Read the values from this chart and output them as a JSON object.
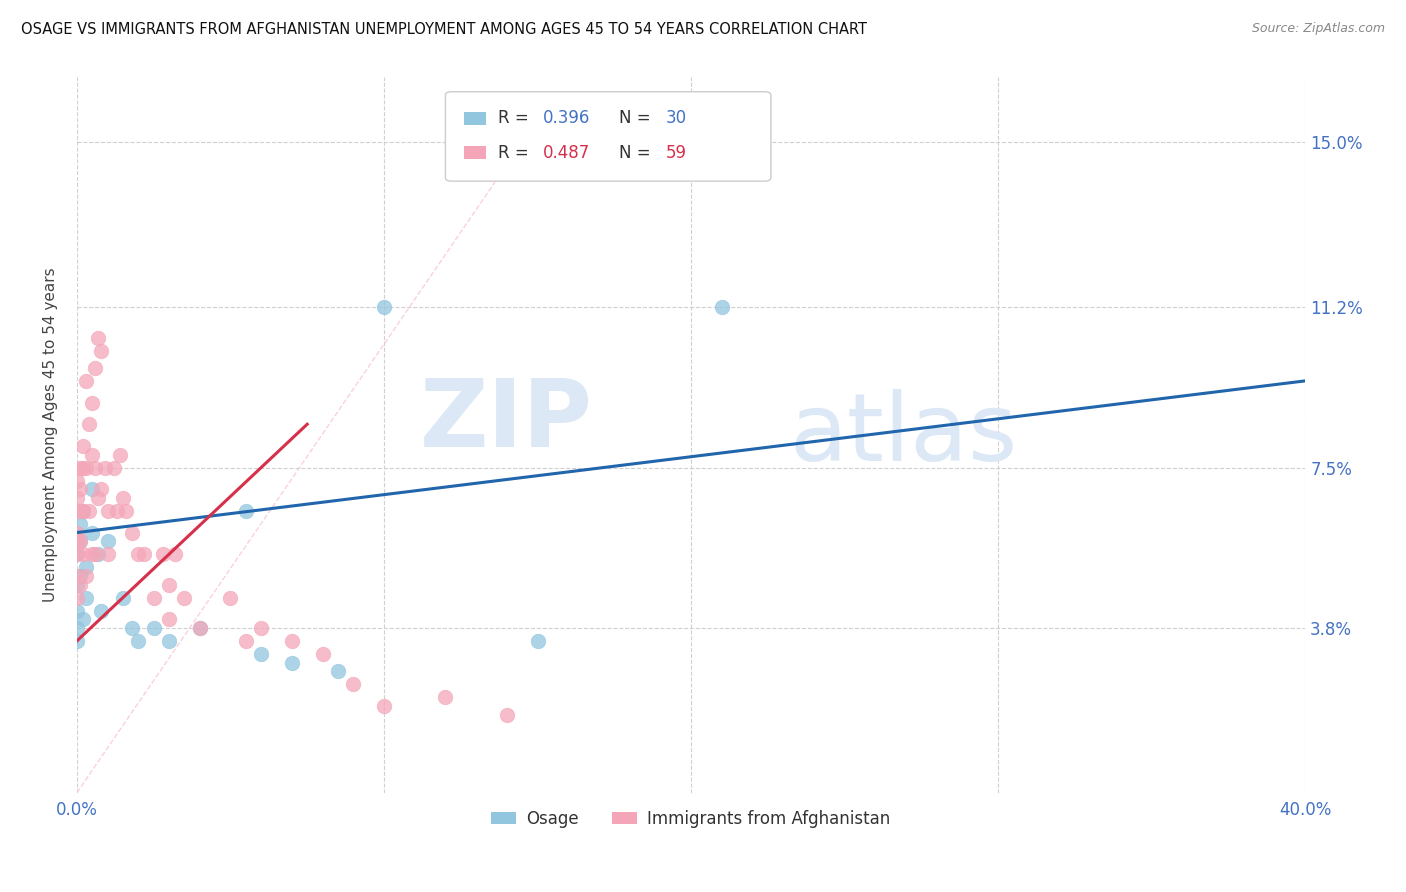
{
  "title": "OSAGE VS IMMIGRANTS FROM AFGHANISTAN UNEMPLOYMENT AMONG AGES 45 TO 54 YEARS CORRELATION CHART",
  "source": "Source: ZipAtlas.com",
  "ylabel": "Unemployment Among Ages 45 to 54 years",
  "ytick_labels": [
    "3.8%",
    "7.5%",
    "11.2%",
    "15.0%"
  ],
  "ytick_values": [
    3.8,
    7.5,
    11.2,
    15.0
  ],
  "xlim": [
    0.0,
    40.0
  ],
  "ylim": [
    0.0,
    16.5
  ],
  "legend1_r": "R = 0.396",
  "legend1_n": "N = 30",
  "legend2_r": "R = 0.487",
  "legend2_n": "N = 59",
  "color_blue": "#92c5de",
  "color_pink": "#f4a6b8",
  "color_blue_line": "#2166ac",
  "color_pink_line": "#d6304a",
  "color_pink_dash": "#f9c6d0",
  "watermark_zip": "ZIP",
  "watermark_atlas": "atlas",
  "osage_x": [
    0.0,
    0.0,
    0.0,
    0.0,
    0.0,
    0.1,
    0.1,
    0.1,
    0.2,
    0.2,
    0.3,
    0.3,
    0.5,
    0.5,
    0.7,
    0.8,
    1.0,
    1.5,
    1.8,
    2.0,
    2.5,
    3.0,
    4.0,
    5.5,
    6.0,
    7.0,
    8.5,
    10.0,
    15.0,
    21.0
  ],
  "osage_y": [
    5.5,
    4.8,
    4.2,
    3.8,
    3.5,
    6.2,
    5.8,
    5.0,
    6.5,
    4.0,
    5.2,
    4.5,
    7.0,
    6.0,
    5.5,
    4.2,
    5.8,
    4.5,
    3.8,
    3.5,
    3.8,
    3.5,
    3.8,
    6.5,
    3.2,
    3.0,
    2.8,
    11.2,
    3.5,
    11.2
  ],
  "afghan_x": [
    0.0,
    0.0,
    0.0,
    0.0,
    0.0,
    0.0,
    0.0,
    0.0,
    0.1,
    0.1,
    0.1,
    0.1,
    0.1,
    0.2,
    0.2,
    0.2,
    0.2,
    0.3,
    0.3,
    0.3,
    0.4,
    0.4,
    0.5,
    0.5,
    0.5,
    0.6,
    0.6,
    0.6,
    0.7,
    0.7,
    0.8,
    0.8,
    0.9,
    1.0,
    1.0,
    1.2,
    1.3,
    1.4,
    1.5,
    1.6,
    1.8,
    2.0,
    2.2,
    2.5,
    2.8,
    3.0,
    3.0,
    3.2,
    3.5,
    4.0,
    5.0,
    5.5,
    6.0,
    7.0,
    8.0,
    9.0,
    10.0,
    12.0,
    14.0
  ],
  "afghan_y": [
    7.2,
    6.8,
    6.5,
    6.0,
    5.8,
    5.5,
    5.0,
    4.5,
    7.5,
    7.0,
    6.5,
    5.8,
    4.8,
    8.0,
    7.5,
    6.5,
    5.5,
    9.5,
    7.5,
    5.0,
    8.5,
    6.5,
    9.0,
    7.8,
    5.5,
    9.8,
    7.5,
    5.5,
    10.5,
    6.8,
    10.2,
    7.0,
    7.5,
    6.5,
    5.5,
    7.5,
    6.5,
    7.8,
    6.8,
    6.5,
    6.0,
    5.5,
    5.5,
    4.5,
    5.5,
    4.8,
    4.0,
    5.5,
    4.5,
    3.8,
    4.5,
    3.5,
    3.8,
    3.5,
    3.2,
    2.5,
    2.0,
    2.2,
    1.8
  ],
  "blue_line_x0": 0.0,
  "blue_line_y0": 6.0,
  "blue_line_x1": 40.0,
  "blue_line_y1": 9.5,
  "pink_line_x0": 0.0,
  "pink_line_y0": 3.5,
  "pink_line_x1": 7.5,
  "pink_line_y1": 8.5,
  "dash_line_x0": 0.0,
  "dash_line_y0": 0.0,
  "dash_line_x1": 14.5,
  "dash_line_y1": 15.0
}
